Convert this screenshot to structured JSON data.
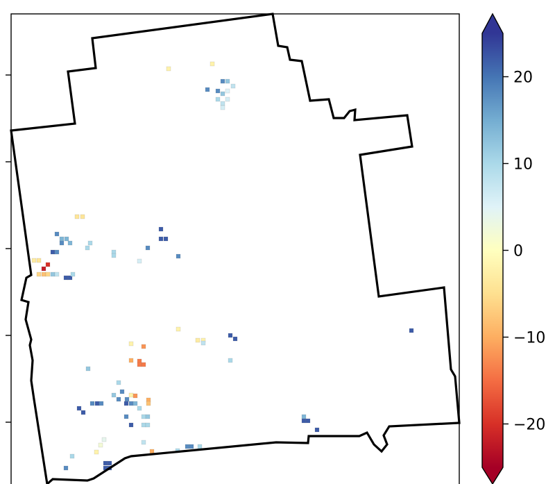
{
  "chart_data": {
    "type": "heatmap",
    "title": "",
    "xlabel": "",
    "ylabel": "",
    "colormap": "RdYlBu",
    "colorbar": {
      "vmin": -25,
      "vmax": 25,
      "extend": "both",
      "ticks": [
        20,
        10,
        0,
        -10,
        -20
      ],
      "tick_labels": [
        "20",
        "10",
        "0",
        "−10",
        "−20"
      ]
    },
    "grid": false,
    "legend": "none",
    "y_ticks_unlabeled": 5
  }
}
